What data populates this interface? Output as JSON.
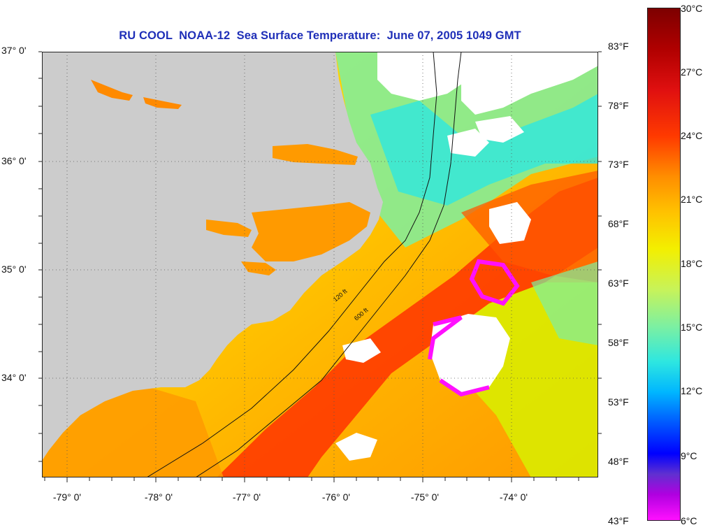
{
  "title": "RU COOL  NOAA-12  Sea Surface Temperature:  June 07, 2005 1049 GMT",
  "latitude_labels": [
    "37° 0'",
    "36° 0'",
    "35° 0'",
    "34° 0'"
  ],
  "longitude_labels": [
    "-79° 0'",
    "-78° 0'",
    "-77° 0'",
    "-76° 0'",
    "-75° 0'",
    "-74° 0'"
  ],
  "contour_labels": [
    "120 ft",
    "600 ft"
  ],
  "colorbar": {
    "fahrenheit_labels": [
      "83°F",
      "78°F",
      "73°F",
      "68°F",
      "63°F",
      "58°F",
      "53°F",
      "48°F",
      "43°F"
    ],
    "celsius_labels": [
      "30°C",
      "27°C",
      "24°C",
      "21°C",
      "18°C",
      "15°C",
      "12°C",
      "9°C",
      "6°C"
    ]
  },
  "colors": {
    "title": "#1f2fb8",
    "land": "#cccccc",
    "cloud": "#ffffff",
    "warm": "#ff3a00",
    "cool": "#00b6ff",
    "coldest": "#ff10ff"
  }
}
